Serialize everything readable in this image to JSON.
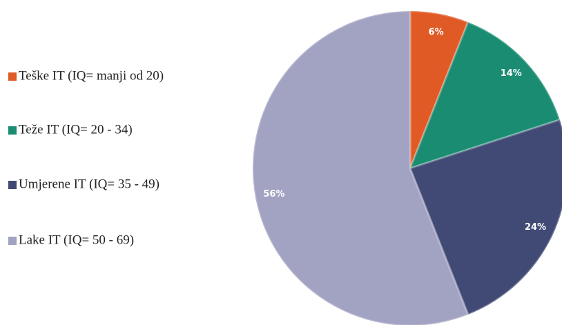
{
  "chart_data": {
    "type": "pie",
    "categories": [
      "Teške IT (IQ= manji od 20)",
      "Teže IT (IQ= 20 - 34)",
      "Umjerene IT (IQ= 35 - 49)",
      "Lake IT (IQ= 50 - 69)"
    ],
    "values": [
      6,
      14,
      24,
      56
    ],
    "value_labels": [
      "6%",
      "14%",
      "24%",
      "56%"
    ],
    "colors": [
      "#e05a26",
      "#1a8c72",
      "#414a75",
      "#a2a2c3"
    ],
    "legend": "left"
  }
}
